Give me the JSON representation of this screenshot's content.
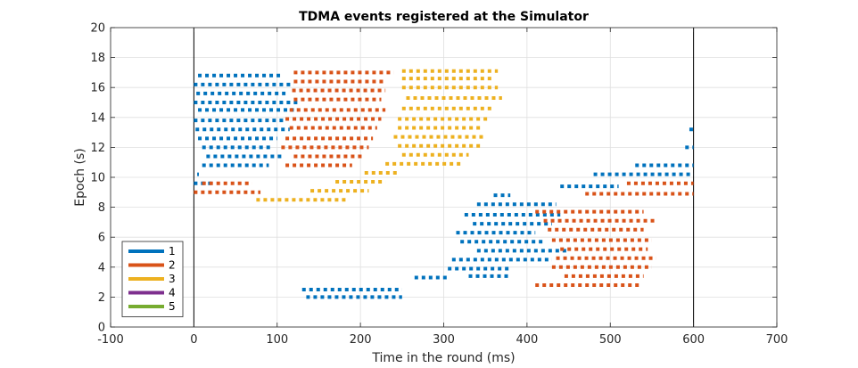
{
  "chart_data": {
    "type": "scatter",
    "title": "TDMA events registered at the Simulator",
    "xlabel": "Time in the round (ms)",
    "ylabel": "Epoch (s)",
    "xlim": [
      -100,
      700
    ],
    "ylim": [
      0,
      20
    ],
    "xticks": [
      -100,
      0,
      100,
      200,
      300,
      400,
      500,
      600,
      700
    ],
    "yticks": [
      0,
      2,
      4,
      6,
      8,
      10,
      12,
      14,
      16,
      18,
      20
    ],
    "vlines": [
      0,
      600
    ],
    "grid": true,
    "legend_position": "bottom-left",
    "series": [
      {
        "name": "1",
        "color": "#0072BD",
        "segments": [
          {
            "x0": 0,
            "x1": 25,
            "y": 9.6
          },
          {
            "x0": 5,
            "x1": 105,
            "y": 16.8
          },
          {
            "x0": 0,
            "x1": 120,
            "y": 16.2
          },
          {
            "x0": 3,
            "x1": 110,
            "y": 15.6
          },
          {
            "x0": 0,
            "x1": 125,
            "y": 15.0
          },
          {
            "x0": 5,
            "x1": 120,
            "y": 14.5
          },
          {
            "x0": 0,
            "x1": 110,
            "y": 13.8
          },
          {
            "x0": 2,
            "x1": 115,
            "y": 13.2
          },
          {
            "x0": 5,
            "x1": 100,
            "y": 12.6
          },
          {
            "x0": 10,
            "x1": 95,
            "y": 12.0
          },
          {
            "x0": 15,
            "x1": 105,
            "y": 11.4
          },
          {
            "x0": 10,
            "x1": 90,
            "y": 10.8
          },
          {
            "x0": 4,
            "x1": 6,
            "y": 10.2
          },
          {
            "x0": 130,
            "x1": 250,
            "y": 2.5
          },
          {
            "x0": 135,
            "x1": 250,
            "y": 2.0
          },
          {
            "x0": 265,
            "x1": 305,
            "y": 3.3
          },
          {
            "x0": 305,
            "x1": 380,
            "y": 3.9
          },
          {
            "x0": 330,
            "x1": 380,
            "y": 3.4
          },
          {
            "x0": 310,
            "x1": 430,
            "y": 4.5
          },
          {
            "x0": 340,
            "x1": 450,
            "y": 5.1
          },
          {
            "x0": 320,
            "x1": 420,
            "y": 5.7
          },
          {
            "x0": 315,
            "x1": 410,
            "y": 6.3
          },
          {
            "x0": 335,
            "x1": 430,
            "y": 6.9
          },
          {
            "x0": 325,
            "x1": 440,
            "y": 7.5
          },
          {
            "x0": 340,
            "x1": 435,
            "y": 8.2
          },
          {
            "x0": 360,
            "x1": 380,
            "y": 8.8
          },
          {
            "x0": 440,
            "x1": 510,
            "y": 9.4
          },
          {
            "x0": 480,
            "x1": 600,
            "y": 10.2
          },
          {
            "x0": 530,
            "x1": 600,
            "y": 10.8
          },
          {
            "x0": 590,
            "x1": 600,
            "y": 12.0
          },
          {
            "x0": 595,
            "x1": 600,
            "y": 13.2
          }
        ]
      },
      {
        "name": "2",
        "color": "#D95319",
        "segments": [
          {
            "x0": 0,
            "x1": 80,
            "y": 9.0
          },
          {
            "x0": 10,
            "x1": 70,
            "y": 9.6
          },
          {
            "x0": 120,
            "x1": 240,
            "y": 17.0
          },
          {
            "x0": 120,
            "x1": 230,
            "y": 16.4
          },
          {
            "x0": 118,
            "x1": 230,
            "y": 15.8
          },
          {
            "x0": 120,
            "x1": 225,
            "y": 15.2
          },
          {
            "x0": 115,
            "x1": 230,
            "y": 14.5
          },
          {
            "x0": 110,
            "x1": 225,
            "y": 13.9
          },
          {
            "x0": 115,
            "x1": 220,
            "y": 13.3
          },
          {
            "x0": 110,
            "x1": 215,
            "y": 12.6
          },
          {
            "x0": 105,
            "x1": 210,
            "y": 12.0
          },
          {
            "x0": 120,
            "x1": 205,
            "y": 11.4
          },
          {
            "x0": 110,
            "x1": 190,
            "y": 10.8
          },
          {
            "x0": 410,
            "x1": 540,
            "y": 7.7
          },
          {
            "x0": 420,
            "x1": 555,
            "y": 7.1
          },
          {
            "x0": 425,
            "x1": 540,
            "y": 6.5
          },
          {
            "x0": 430,
            "x1": 550,
            "y": 5.8
          },
          {
            "x0": 440,
            "x1": 545,
            "y": 5.2
          },
          {
            "x0": 435,
            "x1": 555,
            "y": 4.6
          },
          {
            "x0": 430,
            "x1": 550,
            "y": 4.0
          },
          {
            "x0": 445,
            "x1": 540,
            "y": 3.4
          },
          {
            "x0": 410,
            "x1": 535,
            "y": 2.8
          },
          {
            "x0": 470,
            "x1": 600,
            "y": 8.9
          },
          {
            "x0": 520,
            "x1": 600,
            "y": 9.6
          }
        ]
      },
      {
        "name": "3",
        "color": "#EDB120",
        "segments": [
          {
            "x0": 75,
            "x1": 185,
            "y": 8.5
          },
          {
            "x0": 140,
            "x1": 210,
            "y": 9.1
          },
          {
            "x0": 170,
            "x1": 230,
            "y": 9.7
          },
          {
            "x0": 205,
            "x1": 245,
            "y": 10.3
          },
          {
            "x0": 230,
            "x1": 320,
            "y": 10.9
          },
          {
            "x0": 250,
            "x1": 330,
            "y": 11.5
          },
          {
            "x0": 245,
            "x1": 345,
            "y": 12.1
          },
          {
            "x0": 240,
            "x1": 350,
            "y": 12.7
          },
          {
            "x0": 245,
            "x1": 345,
            "y": 13.3
          },
          {
            "x0": 245,
            "x1": 355,
            "y": 13.9
          },
          {
            "x0": 250,
            "x1": 360,
            "y": 14.6
          },
          {
            "x0": 255,
            "x1": 370,
            "y": 15.3
          },
          {
            "x0": 250,
            "x1": 365,
            "y": 16.0
          },
          {
            "x0": 250,
            "x1": 360,
            "y": 16.6
          },
          {
            "x0": 250,
            "x1": 365,
            "y": 17.1
          }
        ]
      },
      {
        "name": "4",
        "color": "#7E2F8E",
        "segments": []
      },
      {
        "name": "5",
        "color": "#77AC30",
        "segments": []
      }
    ]
  }
}
